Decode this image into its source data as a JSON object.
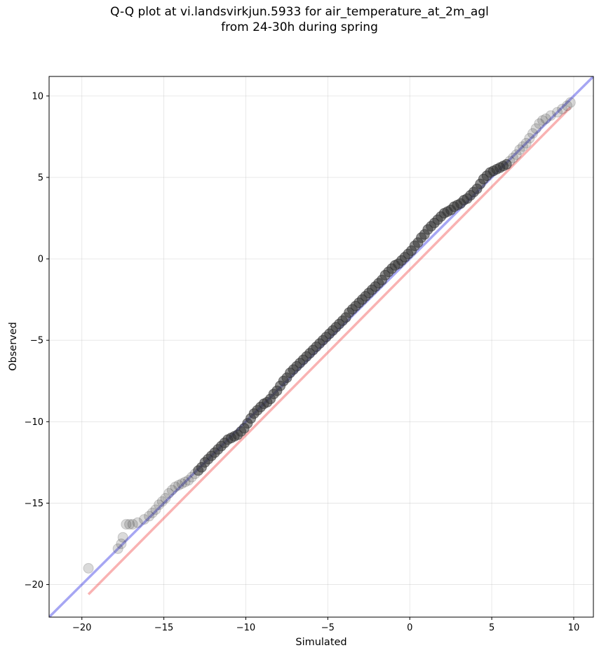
{
  "title_line1": "Q-Q plot at vi.landsvirkjun.5933 for air_temperature_at_2m_agl",
  "title_line2": "from 24-30h during spring",
  "chart_data": {
    "type": "scatter",
    "title": "Q-Q plot at vi.landsvirkjun.5933 for air_temperature_at_2m_agl\nfrom 24-30h during spring",
    "xlabel": "Simulated",
    "ylabel": "Observed",
    "xlim": [
      -22,
      11.2
    ],
    "ylim": [
      -22,
      11.2
    ],
    "xticks": [
      -20,
      -15,
      -10,
      -5,
      0,
      5,
      10
    ],
    "yticks": [
      -20,
      -15,
      -10,
      -5,
      0,
      5,
      10
    ],
    "xtick_labels": [
      "−20",
      "−15",
      "−10",
      "−5",
      "0",
      "5",
      "10"
    ],
    "ytick_labels": [
      "−20",
      "−15",
      "−10",
      "−5",
      "0",
      "5",
      "10"
    ],
    "grid": true,
    "colors": {
      "identity_line": "#0000dd",
      "fit_line": "#ee2222",
      "points": "#333333"
    },
    "reference_lines": [
      {
        "kind": "identity",
        "x": [
          -22,
          11.2
        ],
        "y": [
          -22,
          11.2
        ]
      },
      {
        "kind": "fit",
        "x": [
          -19.6,
          9.8
        ],
        "y": [
          -20.6,
          9.3
        ]
      }
    ],
    "points": {
      "x": [
        -19.6,
        -17.8,
        -17.6,
        -17.5,
        -17.3,
        -17.1,
        -16.9,
        -16.6,
        -16.2,
        -15.9,
        -15.7,
        -15.5,
        -15.3,
        -15.1,
        -14.9,
        -14.7,
        -14.5,
        -14.3,
        -14.1,
        -13.9,
        -13.7,
        -13.5,
        -13.3,
        -13.1,
        -12.9,
        -12.7,
        -12.5,
        -12.3,
        -12.1,
        -11.9,
        -11.7,
        -11.5,
        -11.3,
        -11.1,
        -10.9,
        -10.7,
        -10.5,
        -10.3,
        -10.1,
        -9.9,
        -9.7,
        -9.5,
        -9.3,
        -9.1,
        -8.9,
        -8.7,
        -8.5,
        -8.3,
        -8.1,
        -7.9,
        -7.7,
        -7.5,
        -7.3,
        -7.1,
        -6.9,
        -6.7,
        -6.5,
        -6.3,
        -6.1,
        -5.9,
        -5.7,
        -5.5,
        -5.3,
        -5.1,
        -4.9,
        -4.7,
        -4.5,
        -4.3,
        -4.1,
        -3.9,
        -3.7,
        -3.5,
        -3.3,
        -3.1,
        -2.9,
        -2.7,
        -2.5,
        -2.3,
        -2.1,
        -1.9,
        -1.7,
        -1.5,
        -1.3,
        -1.1,
        -0.9,
        -0.7,
        -0.5,
        -0.3,
        -0.1,
        0.1,
        0.3,
        0.5,
        0.7,
        0.9,
        1.1,
        1.3,
        1.5,
        1.7,
        1.9,
        2.1,
        2.3,
        2.5,
        2.7,
        2.9,
        3.1,
        3.3,
        3.5,
        3.7,
        3.9,
        4.1,
        4.3,
        4.5,
        4.7,
        4.9,
        5.1,
        5.3,
        5.5,
        5.7,
        5.9,
        6.1,
        6.3,
        6.5,
        6.7,
        6.9,
        7.1,
        7.3,
        7.5,
        7.7,
        7.9,
        8.1,
        8.3,
        8.6,
        9.0,
        9.3,
        9.6,
        9.8
      ],
      "y": [
        -19.0,
        -17.8,
        -17.5,
        -17.1,
        -16.3,
        -16.3,
        -16.3,
        -16.2,
        -16.0,
        -15.8,
        -15.6,
        -15.4,
        -15.1,
        -14.9,
        -14.7,
        -14.4,
        -14.2,
        -14.0,
        -13.9,
        -13.8,
        -13.7,
        -13.6,
        -13.4,
        -13.2,
        -13.0,
        -12.8,
        -12.5,
        -12.3,
        -12.1,
        -11.9,
        -11.7,
        -11.5,
        -11.3,
        -11.1,
        -11.0,
        -10.9,
        -10.8,
        -10.6,
        -10.4,
        -10.1,
        -9.8,
        -9.5,
        -9.3,
        -9.1,
        -8.9,
        -8.8,
        -8.6,
        -8.3,
        -8.1,
        -7.8,
        -7.5,
        -7.3,
        -7.0,
        -6.8,
        -6.6,
        -6.4,
        -6.2,
        -6.0,
        -5.8,
        -5.6,
        -5.4,
        -5.2,
        -5.0,
        -4.8,
        -4.6,
        -4.4,
        -4.2,
        -4.0,
        -3.8,
        -3.6,
        -3.3,
        -3.1,
        -2.9,
        -2.7,
        -2.5,
        -2.3,
        -2.1,
        -1.9,
        -1.7,
        -1.5,
        -1.3,
        -1.0,
        -0.8,
        -0.6,
        -0.4,
        -0.3,
        -0.1,
        0.1,
        0.3,
        0.5,
        0.8,
        1.0,
        1.3,
        1.5,
        1.8,
        2.0,
        2.2,
        2.4,
        2.6,
        2.8,
        2.9,
        3.0,
        3.2,
        3.3,
        3.4,
        3.6,
        3.7,
        3.9,
        4.1,
        4.3,
        4.6,
        4.9,
        5.1,
        5.3,
        5.4,
        5.5,
        5.6,
        5.7,
        5.8,
        6.0,
        6.2,
        6.4,
        6.7,
        6.9,
        7.1,
        7.4,
        7.7,
        8.0,
        8.3,
        8.5,
        8.6,
        8.8,
        9.0,
        9.2,
        9.4,
        9.6
      ]
    }
  }
}
